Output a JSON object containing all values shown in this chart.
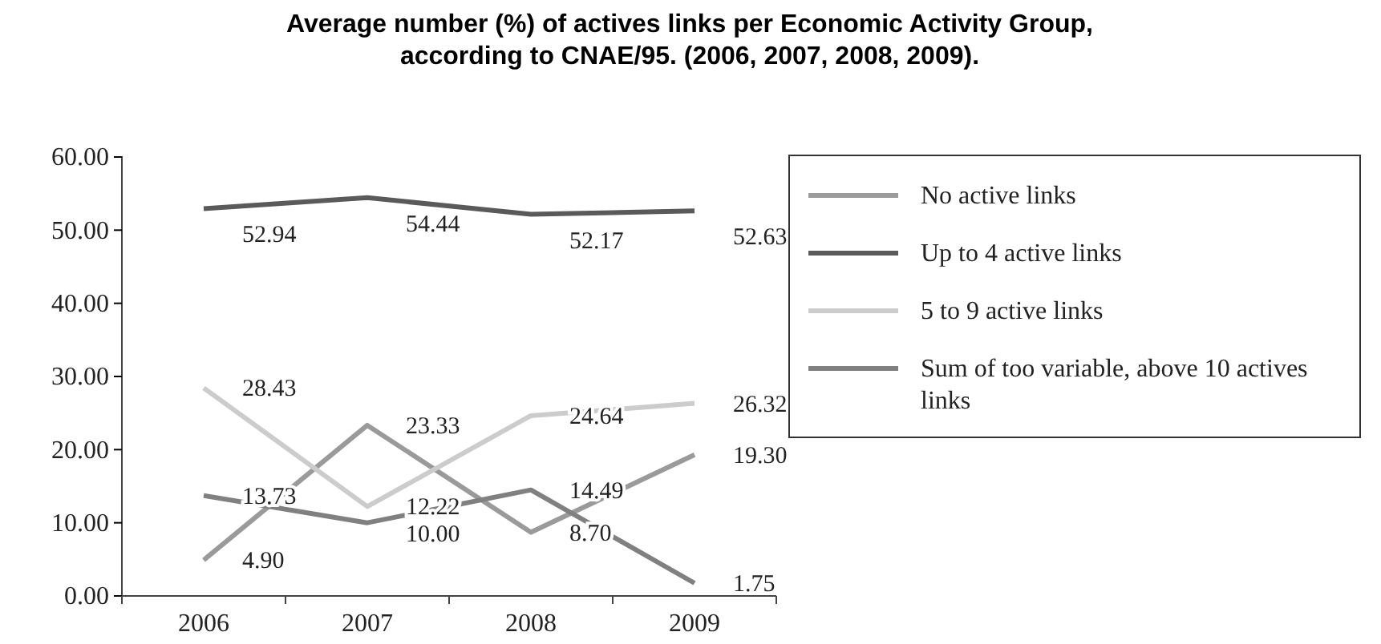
{
  "chart_data": {
    "type": "line",
    "title": "Average number (%) of actives links per Economic Activity Group, according to CNAE/95. (2006, 2007, 2008, 2009).",
    "categories": [
      "2006",
      "2007",
      "2008",
      "2009"
    ],
    "series": [
      {
        "name": "No active links",
        "color": "#9a9a9a",
        "values": [
          4.9,
          23.33,
          8.7,
          19.3
        ]
      },
      {
        "name": "Up to 4 active links",
        "color": "#5a5a5a",
        "values": [
          52.94,
          54.44,
          52.17,
          52.63
        ]
      },
      {
        "name": "5 to 9 active links",
        "color": "#cccccc",
        "values": [
          28.43,
          12.22,
          24.64,
          26.32
        ]
      },
      {
        "name": "Sum of too variable, above 10 actives links",
        "color": "#808080",
        "values": [
          13.73,
          10.0,
          14.49,
          1.75
        ]
      }
    ],
    "ylim": [
      0,
      60
    ],
    "yticks": [
      {
        "value": 0,
        "label": "0.00"
      },
      {
        "value": 10,
        "label": "10.00"
      },
      {
        "value": 20,
        "label": "20.00"
      },
      {
        "value": 30,
        "label": "30.00"
      },
      {
        "value": 40,
        "label": "40.00"
      },
      {
        "value": 50,
        "label": "50.00"
      },
      {
        "value": 60,
        "label": "60.00"
      }
    ],
    "value_labels": [
      [
        "4.90",
        "23.33",
        "8.70",
        "19.30"
      ],
      [
        "52.94",
        "54.44",
        "52.17",
        "52.63"
      ],
      [
        "28.43",
        "12.22",
        "24.64",
        "26.32"
      ],
      [
        "13.73",
        "10.00",
        "14.49",
        "1.75"
      ]
    ],
    "legend": "right",
    "grid": false,
    "marker": "none",
    "line_style": "solid"
  }
}
